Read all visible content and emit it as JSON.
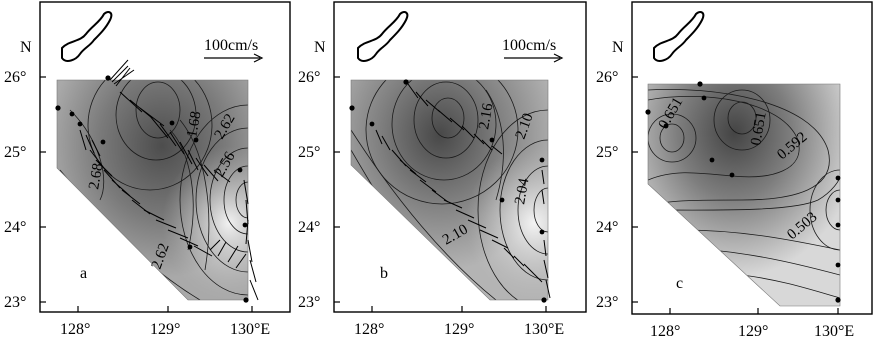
{
  "shared": {
    "north_label": "N",
    "lat_labels": [
      "26°",
      "25°",
      "24°",
      "23°"
    ],
    "lon_labels": [
      "128°",
      "129°",
      "130°E"
    ],
    "colors": {
      "dark": "#5a5a5a",
      "mid": "#8c8c8c",
      "light": "#dadada",
      "line": "#1a1a1a"
    }
  },
  "panels": [
    {
      "id": "a",
      "letter": "a",
      "scale_label": "100cm/s",
      "contour_labels": [
        "1.68",
        "2.62",
        "2.56",
        "2.68",
        "2.62"
      ],
      "has_vectors": true
    },
    {
      "id": "b",
      "letter": "b",
      "scale_label": "100cm/s",
      "contour_labels": [
        "2.16",
        "2.10",
        "2.04",
        "2.10"
      ],
      "has_vectors": true
    },
    {
      "id": "c",
      "letter": "c",
      "scale_label": "",
      "contour_labels": [
        "0.592",
        "0.503",
        "0.651",
        "0.651"
      ],
      "has_vectors": false
    }
  ]
}
